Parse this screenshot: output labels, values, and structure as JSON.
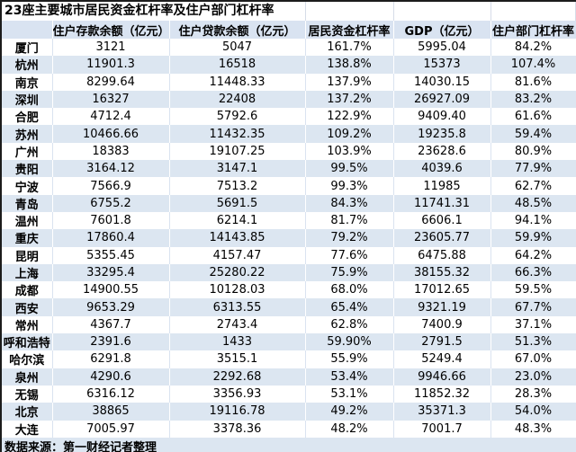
{
  "title": "23座主要城市居民资金杠杆率及住户部门杠杆率",
  "source_note": "数据来源：第一财经记者整理",
  "colors": {
    "stripe_blue": "#dce6f1",
    "row_white": "#ffffff",
    "grid_on_white": "#dae3f0",
    "grid_on_blue": "#ffffff",
    "outer_border": "#1c1c1c",
    "text": "#000000"
  },
  "table": {
    "columns": [
      "",
      "住户存款余额（亿元）",
      "住户贷款余额（亿元）",
      "居民资金杠杆率",
      "GDP（亿元）",
      "住户部门杠杆率"
    ],
    "rows": [
      {
        "city": "厦门",
        "deposit": "3121",
        "loan": "5047",
        "fund_leverage": "161.7%",
        "gdp": "5995.04",
        "household_leverage": "84.2%"
      },
      {
        "city": "杭州",
        "deposit": "11901.3",
        "loan": "16518",
        "fund_leverage": "138.8%",
        "gdp": "15373",
        "household_leverage": "107.4%"
      },
      {
        "city": "南京",
        "deposit": "8299.64",
        "loan": "11448.33",
        "fund_leverage": "137.9%",
        "gdp": "14030.15",
        "household_leverage": "81.6%"
      },
      {
        "city": "深圳",
        "deposit": "16327",
        "loan": "22408",
        "fund_leverage": "137.2%",
        "gdp": "26927.09",
        "household_leverage": "83.2%"
      },
      {
        "city": "合肥",
        "deposit": "4712.4",
        "loan": "5792.6",
        "fund_leverage": "122.9%",
        "gdp": "9409.40",
        "household_leverage": "61.6%"
      },
      {
        "city": "苏州",
        "deposit": "10466.66",
        "loan": "11432.35",
        "fund_leverage": "109.2%",
        "gdp": "19235.8",
        "household_leverage": "59.4%"
      },
      {
        "city": "广州",
        "deposit": "18383",
        "loan": "19107.25",
        "fund_leverage": "103.9%",
        "gdp": "23628.6",
        "household_leverage": "80.9%"
      },
      {
        "city": "贵阳",
        "deposit": "3164.12",
        "loan": "3147.1",
        "fund_leverage": "99.5%",
        "gdp": "4039.6",
        "household_leverage": "77.9%"
      },
      {
        "city": "宁波",
        "deposit": "7566.9",
        "loan": "7513.2",
        "fund_leverage": "99.3%",
        "gdp": "11985",
        "household_leverage": "62.7%"
      },
      {
        "city": "青岛",
        "deposit": "6755.2",
        "loan": "5691.5",
        "fund_leverage": "84.3%",
        "gdp": "11741.31",
        "household_leverage": "48.5%"
      },
      {
        "city": "温州",
        "deposit": "7601.8",
        "loan": "6214.1",
        "fund_leverage": "81.7%",
        "gdp": "6606.1",
        "household_leverage": "94.1%"
      },
      {
        "city": "重庆",
        "deposit": "17860.4",
        "loan": "14143.85",
        "fund_leverage": "79.2%",
        "gdp": "23605.77",
        "household_leverage": "59.9%"
      },
      {
        "city": "昆明",
        "deposit": "5355.45",
        "loan": "4157.47",
        "fund_leverage": "77.6%",
        "gdp": "6475.88",
        "household_leverage": "64.2%"
      },
      {
        "city": "上海",
        "deposit": "33295.4",
        "loan": "25280.22",
        "fund_leverage": "75.9%",
        "gdp": "38155.32",
        "household_leverage": "66.3%"
      },
      {
        "city": "成都",
        "deposit": "14900.55",
        "loan": "10128.03",
        "fund_leverage": "68.0%",
        "gdp": "17012.65",
        "household_leverage": "59.5%"
      },
      {
        "city": "西安",
        "deposit": "9653.29",
        "loan": "6313.55",
        "fund_leverage": "65.4%",
        "gdp": "9321.19",
        "household_leverage": "67.7%"
      },
      {
        "city": "常州",
        "deposit": "4367.7",
        "loan": "2743.4",
        "fund_leverage": "62.8%",
        "gdp": "7400.9",
        "household_leverage": "37.1%"
      },
      {
        "city": "呼和浩特",
        "deposit": "2391.6",
        "loan": "1433",
        "fund_leverage": "59.90%",
        "gdp": "2791.5",
        "household_leverage": "51.3%"
      },
      {
        "city": "哈尔滨",
        "deposit": "6291.8",
        "loan": "3515.1",
        "fund_leverage": "55.9%",
        "gdp": "5249.4",
        "household_leverage": "67.0%"
      },
      {
        "city": "泉州",
        "deposit": "4290.6",
        "loan": "2292.68",
        "fund_leverage": "53.4%",
        "gdp": "9946.66",
        "household_leverage": "23.0%"
      },
      {
        "city": "无锡",
        "deposit": "6316.12",
        "loan": "3356.93",
        "fund_leverage": "53.1%",
        "gdp": "11852.32",
        "household_leverage": "28.3%"
      },
      {
        "city": "北京",
        "deposit": "38865",
        "loan": "19116.78",
        "fund_leverage": "49.2%",
        "gdp": "35371.3",
        "household_leverage": "54.0%"
      },
      {
        "city": "大连",
        "deposit": "7005.97",
        "loan": "3378.36",
        "fund_leverage": "48.2%",
        "gdp": "7001.7",
        "household_leverage": "48.3%"
      }
    ]
  }
}
